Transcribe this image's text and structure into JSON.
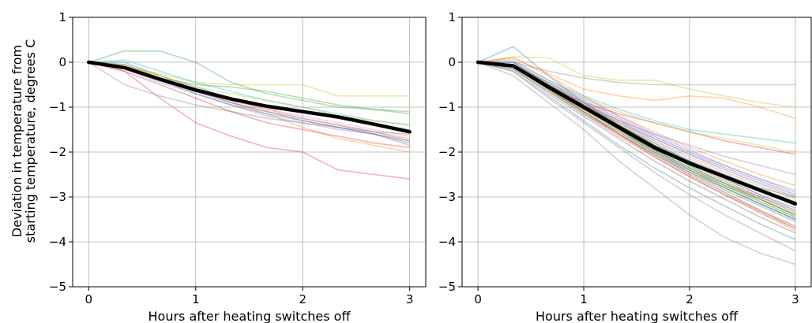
{
  "figure": {
    "ylabel_line1": "Deviation in temperature from",
    "ylabel_line2": "starting temperature, degrees C"
  },
  "chart_data": [
    {
      "type": "line",
      "title": "",
      "xlabel": "Hours after heating switches off",
      "ylabel": "Deviation in temperature from starting temperature, degrees C",
      "xlim": [
        -0.15,
        3.15
      ],
      "ylim": [
        -5,
        1
      ],
      "xticks": [
        0,
        1,
        2,
        3
      ],
      "yticks": [
        1,
        0,
        -1,
        -2,
        -3,
        -4,
        -5
      ],
      "grid": true,
      "x": [
        0,
        0.333,
        0.667,
        1,
        1.333,
        1.667,
        2,
        2.333,
        2.667,
        3
      ],
      "mean_series": {
        "color": "#000000",
        "values": [
          0,
          -0.12,
          -0.38,
          -0.62,
          -0.82,
          -0.98,
          -1.1,
          -1.22,
          -1.38,
          -1.55
        ]
      },
      "series": [
        {
          "color": "#2ca02c",
          "values": [
            0,
            0.25,
            0.25,
            0.0,
            -0.45,
            -0.7,
            -0.85,
            -1.0,
            -1.05,
            -1.1
          ]
        },
        {
          "color": "#1f77b4",
          "values": [
            0,
            0.0,
            -0.3,
            -0.55,
            -0.8,
            -1.0,
            -1.1,
            -1.25,
            -1.4,
            -1.5
          ]
        },
        {
          "color": "#d62728",
          "values": [
            0,
            -0.2,
            -0.8,
            -1.35,
            -1.65,
            -1.9,
            -2.0,
            -2.4,
            -2.5,
            -2.6
          ]
        },
        {
          "color": "#bcbd22",
          "values": [
            0,
            -0.1,
            -0.25,
            -0.45,
            -0.5,
            -0.5,
            -0.5,
            -0.75,
            -0.75,
            -0.75
          ]
        },
        {
          "color": "#ff7f0e",
          "values": [
            0,
            -0.05,
            -0.3,
            -0.6,
            -0.9,
            -1.15,
            -1.45,
            -1.7,
            -1.85,
            -2.0
          ]
        },
        {
          "color": "#9467bd",
          "values": [
            0,
            -0.15,
            -0.45,
            -0.7,
            -0.95,
            -1.2,
            -1.35,
            -1.5,
            -1.6,
            -1.85
          ]
        },
        {
          "color": "#8c564b",
          "values": [
            0,
            -0.1,
            -0.4,
            -0.65,
            -0.9,
            -1.1,
            -1.3,
            -1.45,
            -1.6,
            -1.75
          ]
        },
        {
          "color": "#e377c2",
          "values": [
            0,
            -0.1,
            -0.35,
            -0.6,
            -0.85,
            -1.05,
            -1.2,
            -1.35,
            -1.5,
            -1.65
          ]
        },
        {
          "color": "#17becf",
          "values": [
            0,
            0.05,
            -0.2,
            -0.45,
            -0.65,
            -0.85,
            -1.0,
            -1.15,
            -1.3,
            -1.4
          ]
        },
        {
          "color": "#7f7f7f",
          "values": [
            0,
            -0.5,
            -0.75,
            -0.95,
            -1.1,
            -1.25,
            -1.35,
            -1.45,
            -1.55,
            -1.6
          ]
        },
        {
          "color": "#2ca02c",
          "values": [
            0,
            -0.05,
            -0.35,
            -0.5,
            -0.55,
            -0.65,
            -0.8,
            -0.95,
            -1.05,
            -1.15
          ]
        },
        {
          "color": "#1f77b4",
          "values": [
            0,
            -0.1,
            -0.4,
            -0.7,
            -0.95,
            -1.15,
            -1.3,
            -1.45,
            -1.6,
            -1.8
          ]
        },
        {
          "color": "#d62728",
          "values": [
            0,
            -0.2,
            -0.5,
            -0.8,
            -1.1,
            -1.35,
            -1.5,
            -1.65,
            -1.8,
            -1.9
          ]
        },
        {
          "color": "#ff7f0e",
          "values": [
            0,
            -0.1,
            -0.35,
            -0.6,
            -0.85,
            -1.05,
            -1.25,
            -1.4,
            -1.55,
            -1.7
          ]
        },
        {
          "color": "#9467bd",
          "values": [
            0,
            -0.15,
            -0.4,
            -0.65,
            -0.9,
            -1.1,
            -1.25,
            -1.4,
            -1.55,
            -1.75
          ]
        },
        {
          "color": "#bcbd22",
          "values": [
            0,
            -0.1,
            -0.3,
            -0.55,
            -0.7,
            -0.85,
            -1.0,
            -1.2,
            -1.3,
            -1.4
          ]
        }
      ]
    },
    {
      "type": "line",
      "title": "",
      "xlabel": "Hours after heating switches off",
      "ylabel": "",
      "xlim": [
        -0.15,
        3.15
      ],
      "ylim": [
        -5,
        1
      ],
      "xticks": [
        0,
        1,
        2,
        3
      ],
      "yticks": [
        1,
        0,
        -1,
        -2,
        -3,
        -4,
        -5
      ],
      "grid": true,
      "x": [
        0,
        0.333,
        0.667,
        1,
        1.333,
        1.667,
        2,
        2.333,
        2.667,
        3
      ],
      "mean_series": {
        "color": "#000000",
        "values": [
          0,
          -0.08,
          -0.55,
          -1.0,
          -1.45,
          -1.9,
          -2.25,
          -2.55,
          -2.85,
          -3.15
        ]
      },
      "series": [
        {
          "color": "#1f77b4",
          "values": [
            0,
            0.35,
            -0.3,
            -0.9,
            -1.4,
            -1.85,
            -2.2,
            -2.5,
            -2.8,
            -3.0
          ]
        },
        {
          "color": "#ff7f0e",
          "values": [
            0,
            0.1,
            -0.3,
            -0.75,
            -1.2,
            -1.55,
            -1.9,
            -2.2,
            -2.5,
            -2.75
          ]
        },
        {
          "color": "#2ca02c",
          "values": [
            0,
            0.0,
            -0.5,
            -0.95,
            -1.4,
            -1.85,
            -2.2,
            -2.55,
            -2.85,
            -3.1
          ]
        },
        {
          "color": "#d62728",
          "values": [
            0,
            -0.1,
            -0.6,
            -1.1,
            -1.55,
            -2.0,
            -2.4,
            -2.75,
            -3.05,
            -3.4
          ]
        },
        {
          "color": "#9467bd",
          "values": [
            0,
            -0.05,
            -0.55,
            -1.05,
            -1.5,
            -1.95,
            -2.35,
            -2.7,
            -3.0,
            -3.3
          ]
        },
        {
          "color": "#8c564b",
          "values": [
            0,
            -0.15,
            -0.65,
            -1.15,
            -1.6,
            -2.05,
            -2.45,
            -2.8,
            -3.15,
            -3.5
          ]
        },
        {
          "color": "#e377c2",
          "values": [
            0,
            -0.1,
            -0.6,
            -1.1,
            -1.6,
            -2.1,
            -2.55,
            -2.95,
            -3.3,
            -3.7
          ]
        },
        {
          "color": "#7f7f7f",
          "values": [
            0,
            -0.3,
            -0.9,
            -1.5,
            -2.2,
            -2.8,
            -3.4,
            -3.9,
            -4.25,
            -4.5
          ]
        },
        {
          "color": "#bcbd22",
          "values": [
            0,
            0.12,
            0.1,
            -0.3,
            -0.4,
            -0.4,
            -0.6,
            -0.75,
            -0.9,
            -1.0
          ]
        },
        {
          "color": "#17becf",
          "values": [
            0,
            -0.05,
            -0.45,
            -0.85,
            -1.25,
            -1.65,
            -2.0,
            -2.3,
            -2.6,
            -2.85
          ]
        },
        {
          "color": "#1f77b4",
          "values": [
            0,
            0.0,
            -0.5,
            -1.0,
            -1.5,
            -2.0,
            -2.45,
            -2.85,
            -3.2,
            -3.55
          ]
        },
        {
          "color": "#ff7f0e",
          "values": [
            0,
            -0.1,
            -0.6,
            -1.1,
            -1.6,
            -2.1,
            -2.55,
            -2.95,
            -3.35,
            -3.75
          ]
        },
        {
          "color": "#2ca02c",
          "values": [
            0,
            -0.05,
            -0.5,
            -0.95,
            -1.4,
            -1.85,
            -2.3,
            -2.7,
            -3.05,
            -3.4
          ]
        },
        {
          "color": "#d62728",
          "values": [
            0,
            -0.1,
            -0.55,
            -0.9,
            -1.15,
            -1.35,
            -1.55,
            -1.75,
            -1.9,
            -2.05
          ]
        },
        {
          "color": "#9467bd",
          "values": [
            0,
            0.05,
            -0.4,
            -0.8,
            -1.2,
            -1.6,
            -1.95,
            -2.3,
            -2.6,
            -2.9
          ]
        },
        {
          "color": "#8c564b",
          "values": [
            0,
            -0.05,
            -0.55,
            -1.0,
            -1.5,
            -1.95,
            -2.4,
            -2.8,
            -3.15,
            -3.5
          ]
        },
        {
          "color": "#e377c2",
          "values": [
            0,
            -0.1,
            -0.55,
            -0.95,
            -1.35,
            -1.7,
            -2.05,
            -2.35,
            -2.65,
            -2.95
          ]
        },
        {
          "color": "#7f7f7f",
          "values": [
            0,
            0.0,
            -0.2,
            -0.35,
            -0.45,
            -0.5,
            -0.5,
            -0.5,
            -0.5,
            -0.5
          ]
        },
        {
          "color": "#bcbd22",
          "values": [
            0,
            -0.1,
            -0.6,
            -1.05,
            -1.5,
            -1.95,
            -2.35,
            -2.75,
            -3.1,
            -3.45
          ]
        },
        {
          "color": "#17becf",
          "values": [
            0,
            -0.05,
            -0.45,
            -0.9,
            -1.35,
            -1.8,
            -2.2,
            -2.6,
            -2.95,
            -3.3
          ]
        },
        {
          "color": "#1f77b4",
          "values": [
            0,
            -0.2,
            -0.75,
            -1.3,
            -1.85,
            -2.35,
            -2.8,
            -3.2,
            -3.6,
            -3.95
          ]
        },
        {
          "color": "#ff7f0e",
          "values": [
            0,
            0.1,
            -0.25,
            -0.6,
            -0.75,
            -0.85,
            -0.75,
            -0.8,
            -1.0,
            -1.25
          ]
        },
        {
          "color": "#2ca02c",
          "values": [
            0,
            -0.1,
            -0.6,
            -1.05,
            -1.5,
            -1.95,
            -2.35,
            -2.75,
            -3.1,
            -3.45
          ]
        },
        {
          "color": "#d62728",
          "values": [
            0,
            -0.05,
            -0.5,
            -0.95,
            -1.4,
            -1.85,
            -2.25,
            -2.65,
            -3.0,
            -3.35
          ]
        },
        {
          "color": "#9467bd",
          "values": [
            0,
            -0.1,
            -0.55,
            -0.95,
            -1.3,
            -1.6,
            -1.85,
            -2.1,
            -2.3,
            -2.5
          ]
        },
        {
          "color": "#8c564b",
          "values": [
            0,
            -0.15,
            -0.7,
            -1.2,
            -1.7,
            -2.2,
            -2.65,
            -3.05,
            -3.45,
            -3.8
          ]
        },
        {
          "color": "#e377c2",
          "values": [
            0,
            0.0,
            -0.45,
            -0.85,
            -1.25,
            -1.65,
            -2.0,
            -2.35,
            -2.65,
            -2.95
          ]
        },
        {
          "color": "#7f7f7f",
          "values": [
            0,
            -0.05,
            -0.5,
            -0.95,
            -1.4,
            -1.8,
            -2.2,
            -2.55,
            -2.85,
            -3.15
          ]
        },
        {
          "color": "#bcbd22",
          "values": [
            0,
            -0.1,
            -0.45,
            -0.8,
            -1.1,
            -1.35,
            -1.55,
            -1.7,
            -1.85,
            -2.0
          ]
        },
        {
          "color": "#17becf",
          "values": [
            0,
            0.0,
            -0.4,
            -0.75,
            -1.05,
            -1.3,
            -1.5,
            -1.6,
            -1.7,
            -1.8
          ]
        },
        {
          "color": "#1f77b4",
          "values": [
            0,
            -0.05,
            -0.5,
            -0.9,
            -1.3,
            -1.7,
            -2.05,
            -2.4,
            -2.7,
            -3.0
          ]
        },
        {
          "color": "#2ca02c",
          "values": [
            0,
            -0.1,
            -0.55,
            -1.0,
            -1.45,
            -1.9,
            -2.3,
            -2.7,
            -3.05,
            -3.4
          ]
        },
        {
          "color": "#d62728",
          "values": [
            0,
            -0.1,
            -0.6,
            -1.1,
            -1.6,
            -2.05,
            -2.5,
            -2.9,
            -3.3,
            -3.65
          ]
        },
        {
          "color": "#ff7f0e",
          "values": [
            0,
            -0.05,
            -0.5,
            -0.95,
            -1.35,
            -1.75,
            -2.1,
            -2.45,
            -2.75,
            -3.05
          ]
        },
        {
          "color": "#9467bd",
          "values": [
            0,
            -0.15,
            -0.65,
            -1.15,
            -1.65,
            -2.1,
            -2.55,
            -2.95,
            -3.35,
            -3.7
          ]
        },
        {
          "color": "#8c564b",
          "values": [
            0,
            -0.1,
            -0.55,
            -1.0,
            -1.45,
            -1.85,
            -2.25,
            -2.6,
            -2.95,
            -3.25
          ]
        },
        {
          "color": "#7f7f7f",
          "values": [
            0,
            -0.2,
            -0.8,
            -1.35,
            -1.9,
            -2.45,
            -2.95,
            -3.4,
            -3.8,
            -4.2
          ]
        },
        {
          "color": "#17becf",
          "values": [
            0,
            -0.1,
            -0.6,
            -1.1,
            -1.55,
            -2.0,
            -2.4,
            -2.8,
            -3.15,
            -3.5
          ]
        },
        {
          "color": "#e377c2",
          "values": [
            0,
            -0.05,
            -0.45,
            -0.9,
            -1.3,
            -1.75,
            -2.15,
            -2.5,
            -2.85,
            -3.2
          ]
        },
        {
          "color": "#bcbd22",
          "values": [
            0,
            -0.15,
            -0.65,
            -1.1,
            -1.55,
            -2.05,
            -2.5,
            -2.9,
            -3.3,
            -3.7
          ]
        }
      ]
    }
  ]
}
